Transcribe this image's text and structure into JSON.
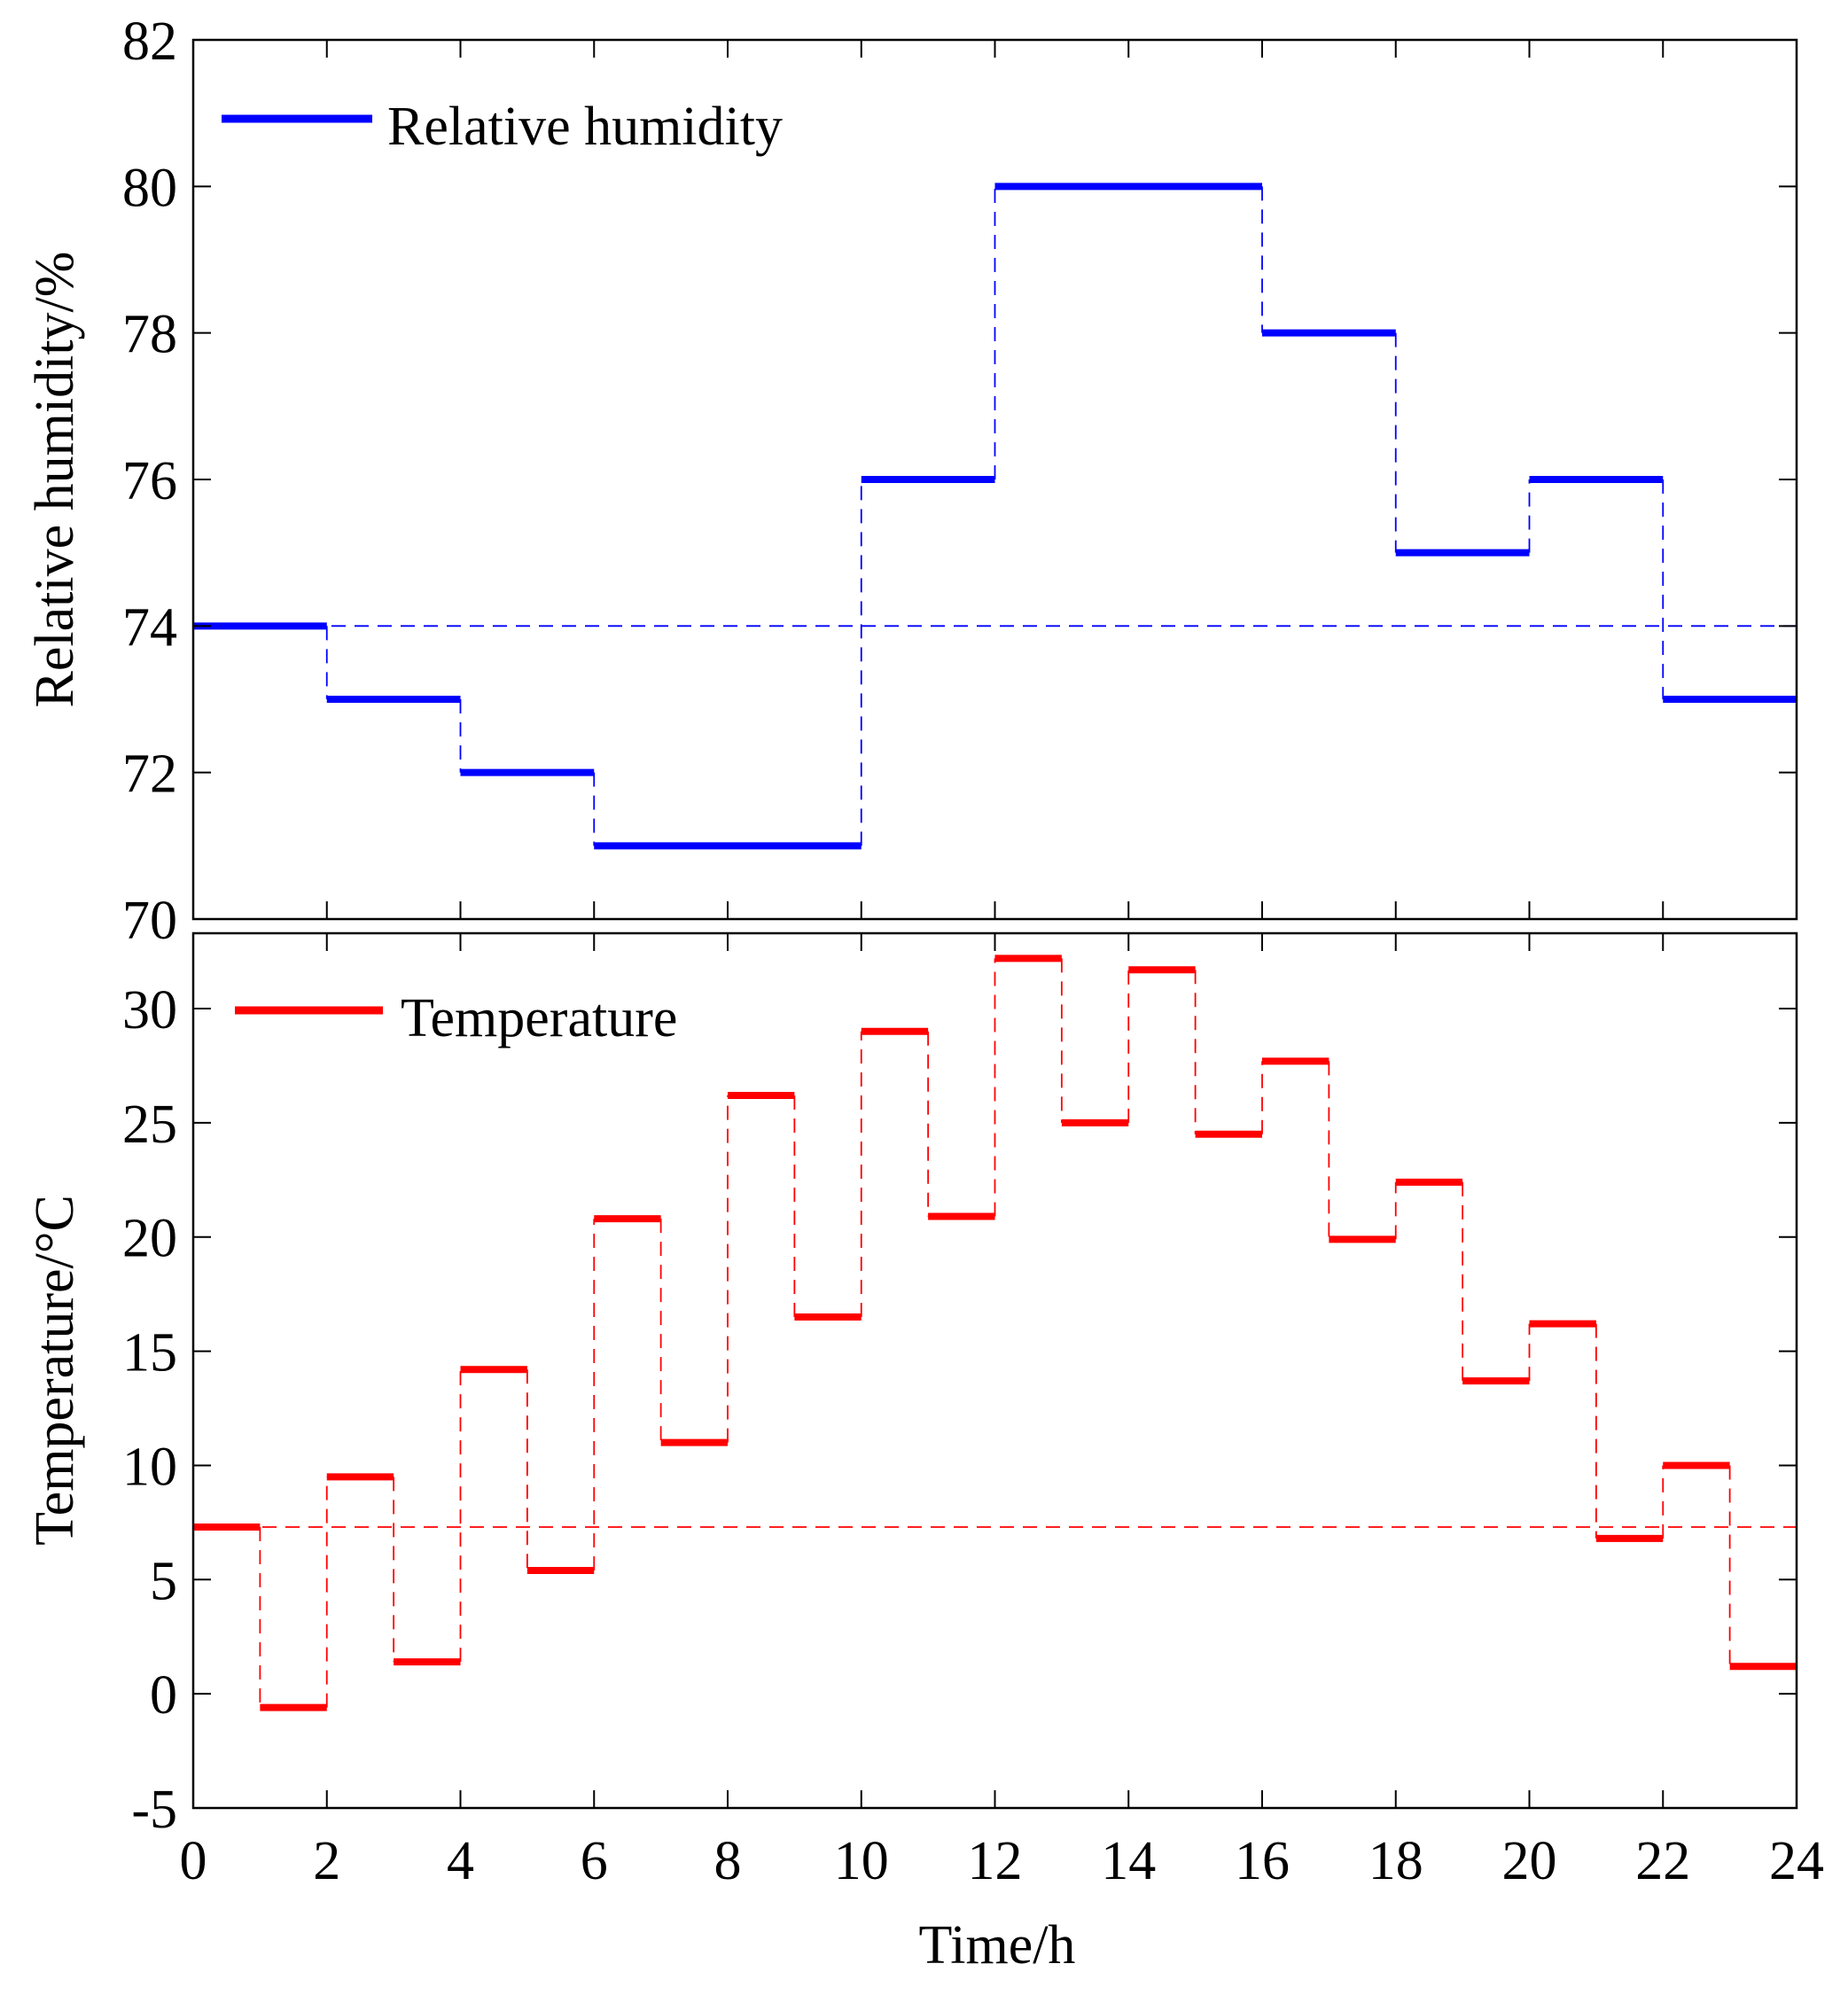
{
  "chart_data": [
    {
      "type": "line",
      "style": "step",
      "title": "",
      "xlabel": "",
      "ylabel": "Relative humidity/%",
      "xlim": [
        0,
        24
      ],
      "ylim": [
        70,
        82
      ],
      "xticks": [
        0,
        2,
        4,
        6,
        8,
        10,
        12,
        14,
        16,
        18,
        20,
        22,
        24
      ],
      "yticks": [
        70,
        72,
        74,
        76,
        78,
        80,
        82
      ],
      "ytick_labels": [
        "70",
        "72",
        "74",
        "76",
        "78",
        "80",
        "82"
      ],
      "legend_position": "top-left",
      "series": [
        {
          "name": "Relative humidity",
          "color": "#0000ff",
          "steps": [
            {
              "x0": 0,
              "x1": 2,
              "y": 74
            },
            {
              "x0": 2,
              "x1": 4,
              "y": 73
            },
            {
              "x0": 4,
              "x1": 6,
              "y": 72
            },
            {
              "x0": 6,
              "x1": 10,
              "y": 71
            },
            {
              "x0": 10,
              "x1": 12,
              "y": 76
            },
            {
              "x0": 12,
              "x1": 16,
              "y": 80
            },
            {
              "x0": 16,
              "x1": 18,
              "y": 78
            },
            {
              "x0": 18,
              "x1": 20,
              "y": 75
            },
            {
              "x0": 20,
              "x1": 22,
              "y": 76
            },
            {
              "x0": 22,
              "x1": 24,
              "y": 73
            }
          ],
          "reference_line": 74
        }
      ]
    },
    {
      "type": "line",
      "style": "step",
      "title": "",
      "xlabel": "Time/h",
      "ylabel": "Temperature/°C",
      "xlim": [
        0,
        24
      ],
      "ylim": [
        -5,
        33.3
      ],
      "xticks": [
        0,
        2,
        4,
        6,
        8,
        10,
        12,
        14,
        16,
        18,
        20,
        22,
        24
      ],
      "xtick_labels": [
        "0",
        "2",
        "4",
        "6",
        "8",
        "10",
        "12",
        "14",
        "16",
        "18",
        "20",
        "22",
        "24"
      ],
      "yticks": [
        -5,
        0,
        5,
        10,
        15,
        20,
        25,
        30
      ],
      "ytick_labels": [
        "-5",
        "0",
        "5",
        "10",
        "15",
        "20",
        "25",
        "30"
      ],
      "legend_position": "top-left",
      "series": [
        {
          "name": "Temperature",
          "color": "#ff0000",
          "steps": [
            {
              "x0": 0,
              "x1": 1,
              "y": 7.3
            },
            {
              "x0": 1,
              "x1": 2,
              "y": -0.6
            },
            {
              "x0": 2,
              "x1": 3,
              "y": 9.5
            },
            {
              "x0": 3,
              "x1": 4,
              "y": 1.4
            },
            {
              "x0": 4,
              "x1": 5,
              "y": 14.2
            },
            {
              "x0": 5,
              "x1": 6,
              "y": 5.4
            },
            {
              "x0": 6,
              "x1": 7,
              "y": 20.8
            },
            {
              "x0": 7,
              "x1": 8,
              "y": 11.0
            },
            {
              "x0": 8,
              "x1": 9,
              "y": 26.2
            },
            {
              "x0": 9,
              "x1": 10,
              "y": 16.5
            },
            {
              "x0": 10,
              "x1": 11,
              "y": 29.0
            },
            {
              "x0": 11,
              "x1": 12,
              "y": 20.9
            },
            {
              "x0": 12,
              "x1": 13,
              "y": 32.2
            },
            {
              "x0": 13,
              "x1": 14,
              "y": 25.0
            },
            {
              "x0": 14,
              "x1": 15,
              "y": 31.7
            },
            {
              "x0": 15,
              "x1": 16,
              "y": 24.5
            },
            {
              "x0": 16,
              "x1": 17,
              "y": 27.7
            },
            {
              "x0": 17,
              "x1": 18,
              "y": 19.9
            },
            {
              "x0": 18,
              "x1": 19,
              "y": 22.4
            },
            {
              "x0": 19,
              "x1": 20,
              "y": 13.7
            },
            {
              "x0": 20,
              "x1": 21,
              "y": 16.2
            },
            {
              "x0": 21,
              "x1": 22,
              "y": 6.8
            },
            {
              "x0": 22,
              "x1": 23,
              "y": 10.0
            },
            {
              "x0": 23,
              "x1": 24,
              "y": 1.2
            }
          ],
          "reference_line": 7.3
        }
      ]
    }
  ]
}
